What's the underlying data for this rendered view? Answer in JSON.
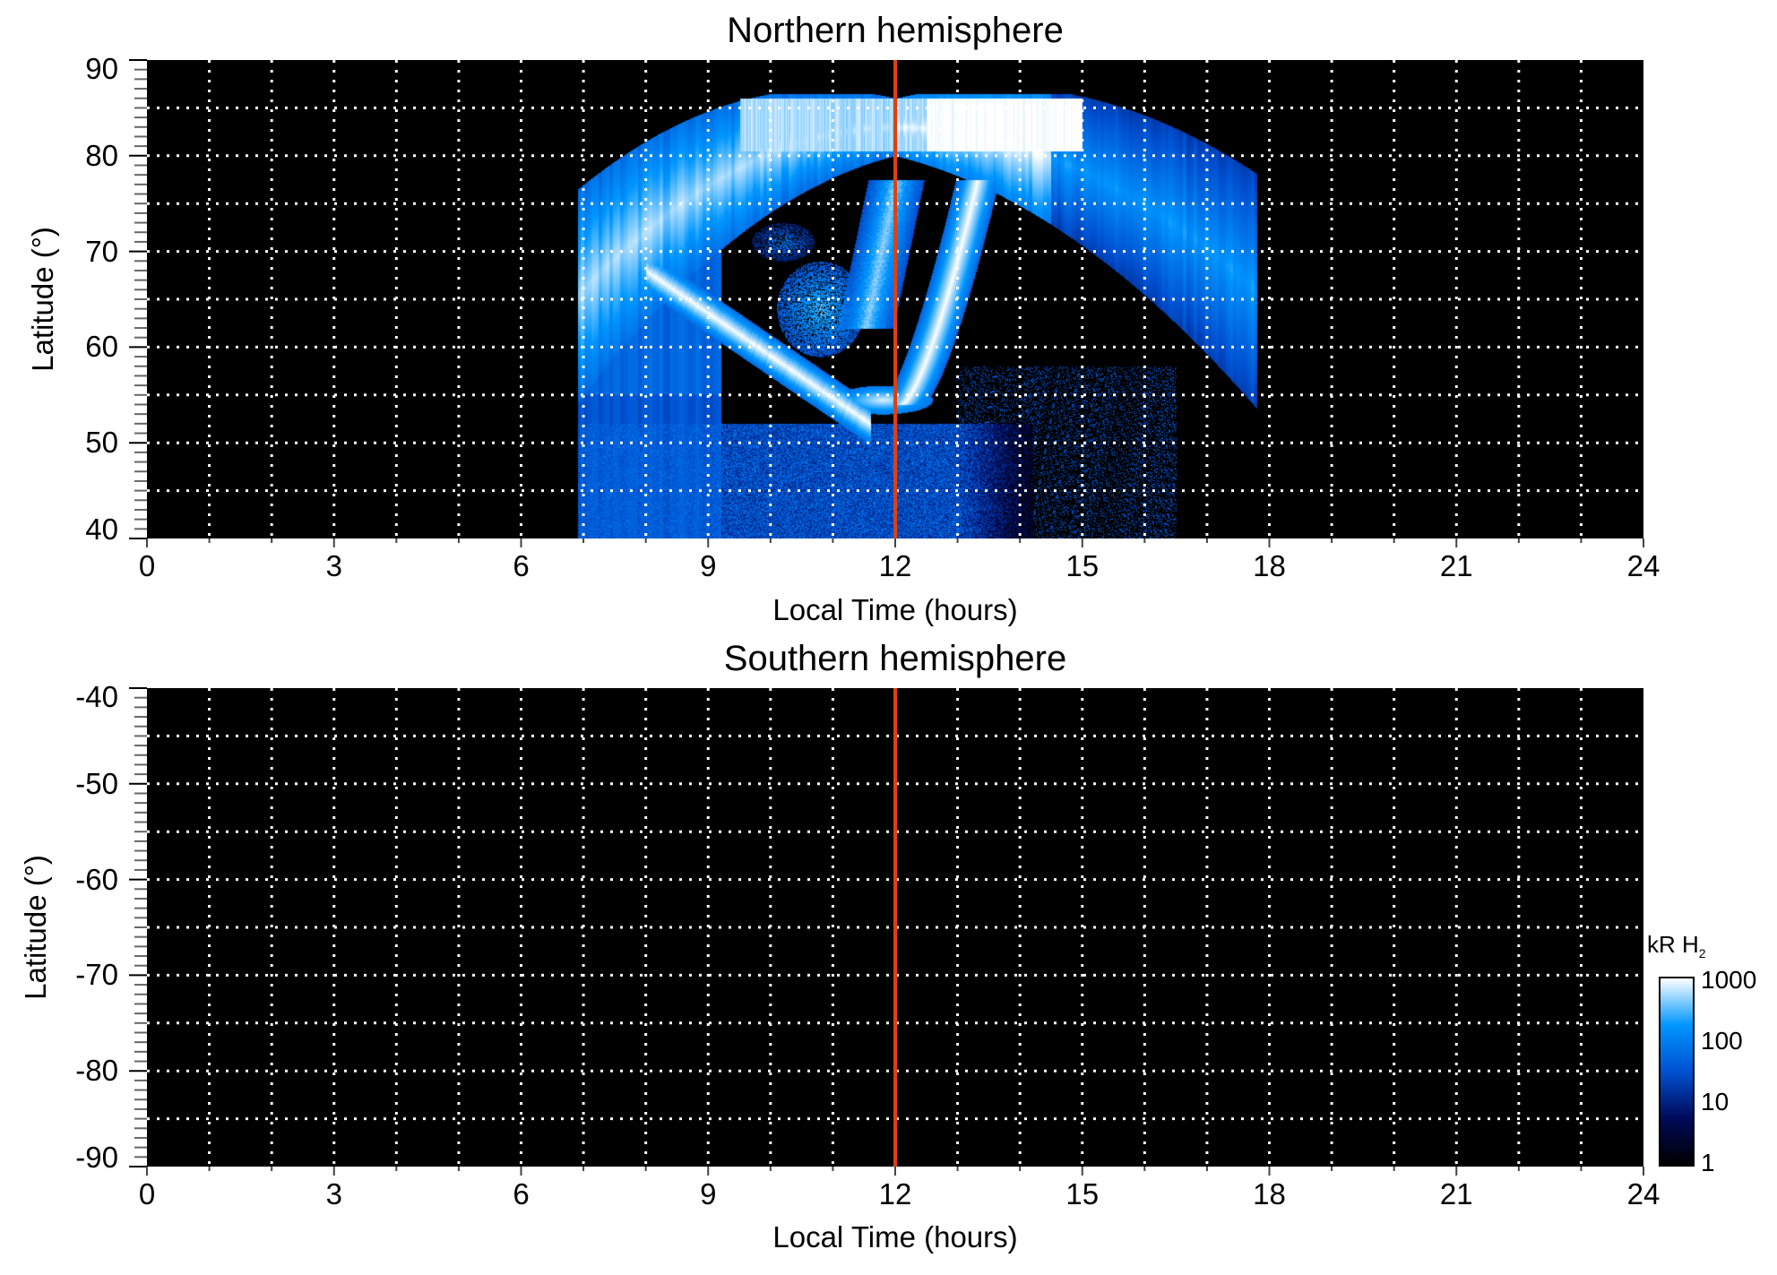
{
  "chart_data": [
    {
      "type": "heatmap",
      "title": "Northern hemisphere",
      "xlabel": "Local Time (hours)",
      "ylabel": "Latitude (°)",
      "xlim": [
        0,
        24
      ],
      "ylim": [
        40,
        90
      ],
      "xticks": [
        "0",
        "3",
        "6",
        "9",
        "12",
        "15",
        "18",
        "21",
        "24"
      ],
      "yticks": [
        "90",
        "80",
        "70",
        "60",
        "50",
        "40"
      ],
      "grid": true,
      "marker_line": {
        "x": 12,
        "color": "#e0400f"
      },
      "has_emission": true
    },
    {
      "type": "heatmap",
      "title": "Southern hemisphere",
      "xlabel": "Local Time (hours)",
      "ylabel": "Latitude (°)",
      "xlim": [
        0,
        24
      ],
      "ylim": [
        -90,
        -40
      ],
      "xticks": [
        "0",
        "3",
        "6",
        "9",
        "12",
        "15",
        "18",
        "21",
        "24"
      ],
      "yticks": [
        "-40",
        "-50",
        "-60",
        "-70",
        "-80",
        "-90"
      ],
      "grid": true,
      "marker_line": {
        "x": 12,
        "color": "#e0400f"
      },
      "has_emission": false
    }
  ],
  "colorbar": {
    "unit": "kR H",
    "unit_sub": "2",
    "scale": "log",
    "range": [
      1,
      1000
    ],
    "ticks": [
      "1000",
      "100",
      "10",
      "1"
    ],
    "colors": [
      "#000000",
      "#000a5a",
      "#0050d0",
      "#0096ff",
      "#ffffff"
    ]
  }
}
